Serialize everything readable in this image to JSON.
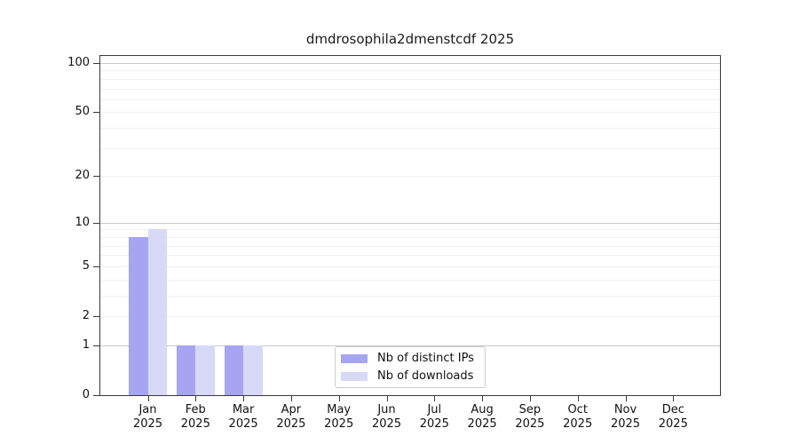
{
  "chart_data": {
    "type": "bar",
    "title": "dmdrosophila2dmenstcdf 2025",
    "year": "2025",
    "categories": [
      "Jan",
      "Feb",
      "Mar",
      "Apr",
      "May",
      "Jun",
      "Jul",
      "Aug",
      "Sep",
      "Oct",
      "Nov",
      "Dec"
    ],
    "series": [
      {
        "name": "Nb of distinct IPs",
        "color": "#a5a5f1",
        "values": [
          8,
          1,
          1,
          0,
          0,
          0,
          0,
          0,
          0,
          0,
          0,
          0
        ]
      },
      {
        "name": "Nb of downloads",
        "color": "#d8d8f7",
        "values": [
          9,
          1,
          1,
          0,
          0,
          0,
          0,
          0,
          0,
          0,
          0,
          0
        ]
      }
    ],
    "yscale": "log1p",
    "ylim": [
      0,
      112
    ],
    "yticks": [
      100,
      50,
      20,
      10,
      5,
      2,
      1,
      0
    ],
    "major_gridlines": [
      1,
      10,
      100
    ],
    "minor_gridlines": [
      2,
      3,
      4,
      5,
      6,
      7,
      8,
      9,
      20,
      30,
      40,
      50,
      60,
      70,
      80,
      90
    ],
    "grid": true,
    "legend_position": "lower-center-inside"
  },
  "colors": {
    "background": "#ffffff",
    "spine": "#3a3a3a",
    "major_grid": "#c9c9c9",
    "minor_grid": "#efefef",
    "legend_border": "#cccccc"
  }
}
